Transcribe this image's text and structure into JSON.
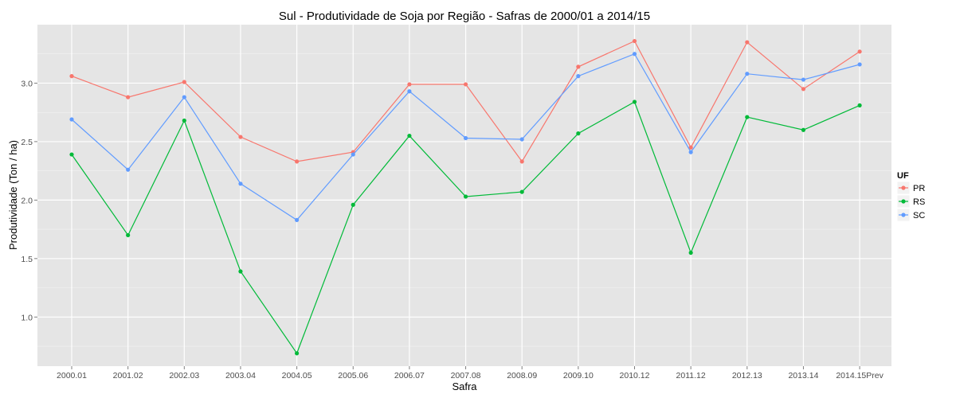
{
  "chart_data": {
    "type": "line",
    "title": "Sul  - Produtividade de Soja por Região - Safras de 2000/01 a 2014/15",
    "xlabel": "Safra",
    "ylabel": "Produtividade (Ton / ha)",
    "categories": [
      "2000.01",
      "2001.02",
      "2002.03",
      "2003.04",
      "2004.05",
      "2005.06",
      "2006.07",
      "2007.08",
      "2008.09",
      "2009.10",
      "2010.12",
      "2011.12",
      "2012.13",
      "2013.14",
      "2014.15Prev"
    ],
    "ylim": [
      0.58,
      3.5
    ],
    "yticks": [
      1.0,
      1.5,
      2.0,
      2.5,
      3.0
    ],
    "ytick_labels": [
      "1.0",
      "1.5",
      "2.0",
      "2.5",
      "3.0"
    ],
    "grid": true,
    "legend": {
      "title": "UF",
      "position": "right"
    },
    "series": [
      {
        "name": "PR",
        "color": "#F8766D",
        "values": [
          3.06,
          2.88,
          3.01,
          2.54,
          2.33,
          2.41,
          2.99,
          2.99,
          2.33,
          3.14,
          3.36,
          2.45,
          3.35,
          2.95,
          3.27
        ]
      },
      {
        "name": "RS",
        "color": "#00BA38",
        "values": [
          2.39,
          1.7,
          2.68,
          1.39,
          0.69,
          1.96,
          2.55,
          2.03,
          2.07,
          2.57,
          2.84,
          1.55,
          2.71,
          2.6,
          2.81
        ]
      },
      {
        "name": "SC",
        "color": "#619CFF",
        "values": [
          2.69,
          2.26,
          2.88,
          2.14,
          1.83,
          2.39,
          2.93,
          2.53,
          2.52,
          3.06,
          3.25,
          2.41,
          3.08,
          3.03,
          3.16
        ]
      }
    ]
  }
}
